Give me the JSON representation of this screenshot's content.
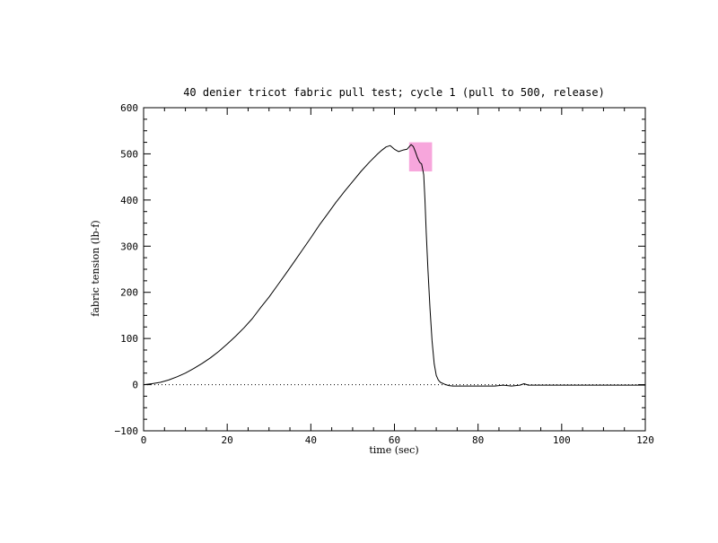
{
  "chart_data": {
    "type": "line",
    "title": "40 denier tricot fabric pull test; cycle 1 (pull to 500, release)",
    "xlabel": "time (sec)",
    "ylabel": "fabric tension (lb-f)",
    "xlim": [
      0,
      120
    ],
    "ylim": [
      -100,
      600
    ],
    "x_ticks": [
      0,
      20,
      40,
      60,
      80,
      100,
      120
    ],
    "y_ticks": [
      -100,
      0,
      100,
      200,
      300,
      400,
      500,
      600
    ],
    "x_tick_labels": [
      "0",
      "20",
      "40",
      "60",
      "80",
      "100",
      "120"
    ],
    "y_tick_labels": [
      "−100",
      "0",
      "100",
      "200",
      "300",
      "400",
      "500",
      "600"
    ],
    "grid": false,
    "zero_reference_line": true,
    "highlight_region": {
      "x": [
        63.5,
        69
      ],
      "y": [
        462,
        525
      ],
      "color": "#f7a6dc"
    },
    "series": [
      {
        "color": "#000000",
        "x": [
          0,
          2,
          4,
          6,
          8,
          10,
          12,
          14,
          16,
          18,
          20,
          22,
          24,
          26,
          28,
          30,
          32,
          34,
          36,
          38,
          40,
          42,
          44,
          46,
          48,
          50,
          52,
          54,
          56,
          57,
          58,
          59,
          60,
          61,
          62,
          63,
          64,
          64.5,
          65,
          65.5,
          66,
          66.5,
          67,
          67.3,
          67.6,
          68,
          68.5,
          69,
          69.5,
          70,
          70.5,
          71,
          72,
          73,
          74,
          76,
          80,
          84,
          86,
          88,
          90,
          91,
          92,
          96,
          100,
          104,
          108,
          112,
          116,
          120
        ],
        "y": [
          0,
          2,
          5,
          10,
          17,
          25,
          35,
          46,
          58,
          72,
          88,
          105,
          123,
          143,
          167,
          190,
          215,
          240,
          266,
          292,
          318,
          345,
          370,
          395,
          418,
          440,
          462,
          482,
          500,
          508,
          515,
          518,
          510,
          505,
          508,
          510,
          520,
          516,
          505,
          492,
          482,
          478,
          455,
          400,
          330,
          250,
          165,
          95,
          45,
          20,
          10,
          5,
          1,
          -2,
          -3,
          -3,
          -3,
          -3,
          -1,
          -3,
          -1,
          2,
          -1,
          -1,
          -1,
          -1,
          -1,
          -1,
          -1,
          -1
        ]
      }
    ]
  }
}
